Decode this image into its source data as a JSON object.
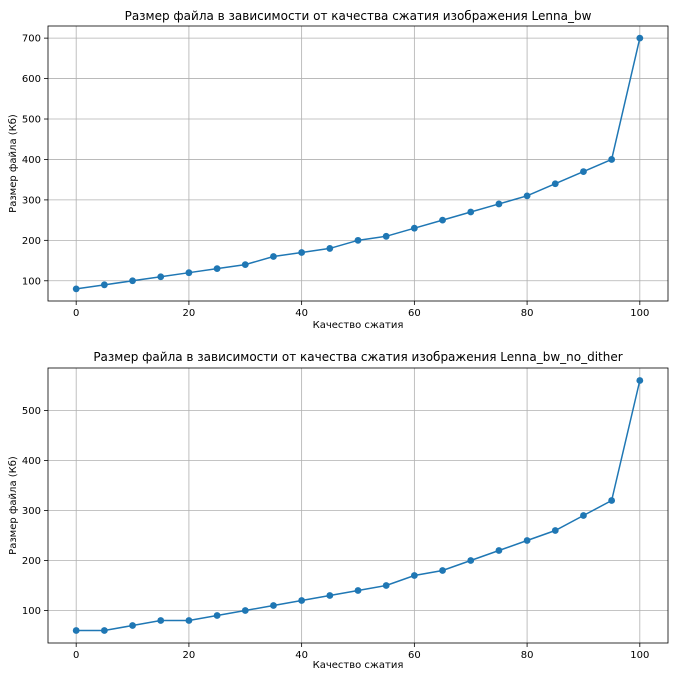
{
  "chart_data": [
    {
      "type": "line",
      "title": "Размер файла в зависимости от качества сжатия изображения Lenna_bw",
      "xlabel": "Качество сжатия",
      "ylabel": "Размер файла (Кб)",
      "x": [
        0,
        5,
        10,
        15,
        20,
        25,
        30,
        35,
        40,
        45,
        50,
        55,
        60,
        65,
        70,
        75,
        80,
        85,
        90,
        95,
        100
      ],
      "series": [
        {
          "values": [
            80,
            90,
            100,
            110,
            120,
            130,
            140,
            160,
            170,
            180,
            200,
            210,
            230,
            250,
            270,
            290,
            310,
            340,
            370,
            400,
            700
          ],
          "color": "#1f77b4",
          "marker": "circle"
        }
      ],
      "xlim": [
        -5,
        105
      ],
      "ylim": [
        50,
        730
      ],
      "xticks": [
        0,
        20,
        40,
        60,
        80,
        100
      ],
      "yticks": [
        100,
        200,
        300,
        400,
        500,
        600,
        700
      ],
      "grid": true
    },
    {
      "type": "line",
      "title": "Размер файла в зависимости от качества сжатия изображения Lenna_bw_no_dither",
      "xlabel": "Качество сжатия",
      "ylabel": "Размер файла (Кб)",
      "x": [
        0,
        5,
        10,
        15,
        20,
        25,
        30,
        35,
        40,
        45,
        50,
        55,
        60,
        65,
        70,
        75,
        80,
        85,
        90,
        95,
        100
      ],
      "series": [
        {
          "values": [
            60,
            60,
            70,
            80,
            80,
            90,
            100,
            110,
            120,
            130,
            140,
            150,
            170,
            180,
            200,
            220,
            240,
            260,
            290,
            320,
            560
          ],
          "color": "#1f77b4",
          "marker": "circle"
        }
      ],
      "xlim": [
        -5,
        105
      ],
      "ylim": [
        35,
        585
      ],
      "xticks": [
        0,
        20,
        40,
        60,
        80,
        100
      ],
      "yticks": [
        100,
        200,
        300,
        400,
        500
      ],
      "grid": true
    }
  ]
}
